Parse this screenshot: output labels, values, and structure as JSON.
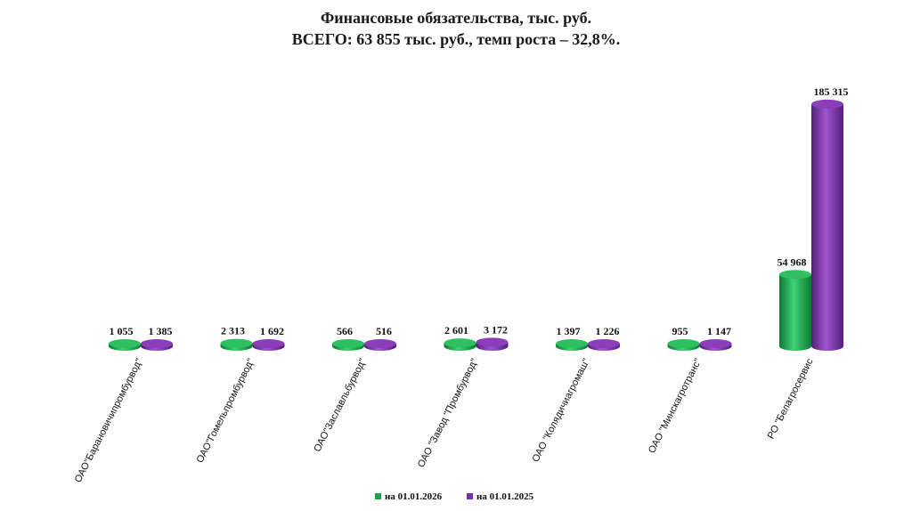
{
  "chart_data": {
    "type": "bar",
    "title": "Финансовые обязательства, тыс. руб.",
    "subtitle": "ВСЕГО: 63 855 тыс. руб., темп роста – 32,8%.",
    "categories": [
      "ОАО\"Барановичипромбурвод\"",
      "ОАО\"Гомельпромбурвод\"",
      "ОАО\"Заславльбурвод\"",
      "ОАО \"Завод \"Промбурвод\"",
      "ОАО \"Колядичиагромаш\"",
      "ОАО \"Минскагротранс\"",
      "РО \"Белагросервис"
    ],
    "series": [
      {
        "name": "на 01.01.2026",
        "color": "#1aa34a",
        "values": [
          1055,
          2313,
          566,
          2601,
          1397,
          955,
          54968
        ],
        "labels": [
          "1 055",
          "2 313",
          "566",
          "2 601",
          "1 397",
          "955",
          "54 968"
        ]
      },
      {
        "name": "на 01.01.2025",
        "color": "#7a2fa8",
        "values": [
          1385,
          1692,
          516,
          3172,
          1226,
          1147,
          185315
        ],
        "labels": [
          "1 385",
          "1 692",
          "516",
          "3 172",
          "1 226",
          "1 147",
          "185 315"
        ]
      }
    ],
    "ylim": [
      0,
      190000
    ],
    "grid": false,
    "legend_position": "bottom"
  }
}
